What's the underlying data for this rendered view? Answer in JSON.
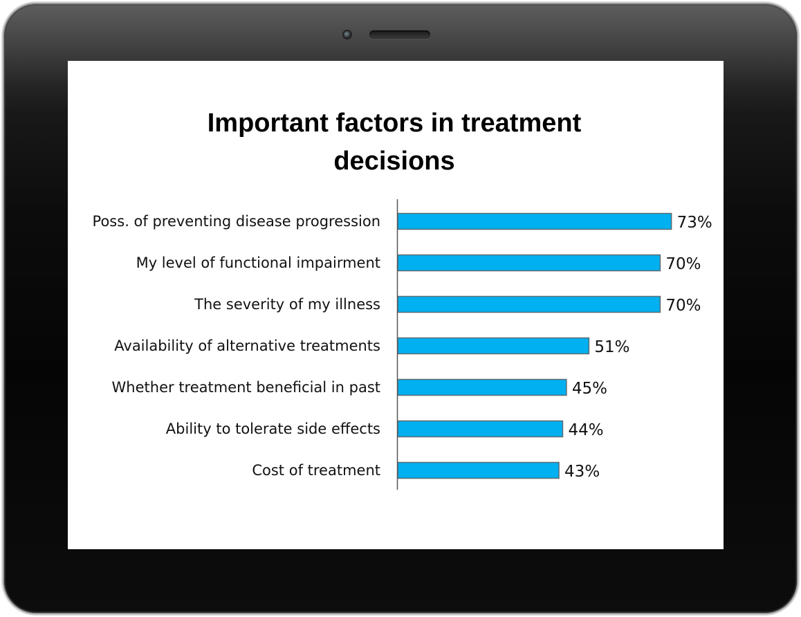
{
  "colors": {
    "bar_fill": "#00b0f0",
    "bar_stroke": "#5f6b73",
    "axis": "#555555",
    "screen_background": "#ffffff",
    "bezel": "#0a0a0a"
  },
  "device": {
    "camera_icon": "camera-icon",
    "speaker_icon": "speaker-grille-icon"
  },
  "chart_data": {
    "type": "bar",
    "orientation": "horizontal",
    "title_lines": [
      "Important factors  in treatment",
      "decisions"
    ],
    "categories": [
      "Poss. of preventing disease progression",
      "My level of functional impairment",
      "The severity of my illness",
      "Availability of alternative treatments",
      "Whether treatment beneficial in past",
      "Ability to tolerate side effects",
      "Cost of treatment"
    ],
    "values": [
      73,
      70,
      70,
      51,
      45,
      44,
      43
    ],
    "value_labels": [
      "73%",
      "70%",
      "70%",
      "51%",
      "45%",
      "44%",
      "43%"
    ],
    "unit": "%",
    "xlim": [
      0,
      80
    ],
    "grid": false,
    "legend": "none",
    "xlabel": "",
    "ylabel": ""
  }
}
